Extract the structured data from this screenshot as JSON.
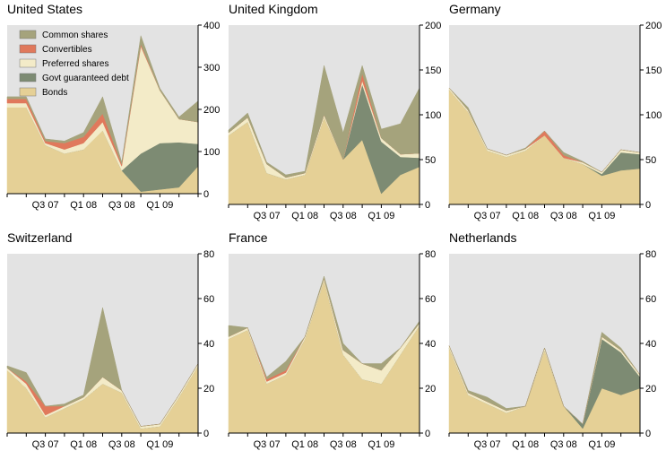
{
  "chart_data": [
    {
      "type": "area",
      "title": "United States",
      "stacked": true,
      "ylim": [
        0,
        400
      ],
      "y_ticks": [
        "0",
        "100",
        "200",
        "300",
        "400"
      ],
      "x_ticks": [
        "Q3 07",
        "Q1 08",
        "Q3 08",
        "Q1 09"
      ],
      "legend": [
        "Common shares",
        "Convertibles",
        "Preferred shares",
        "Govt guaranteed debt",
        "Bonds"
      ],
      "legend_position": "top-left",
      "x": [
        "Q1 07",
        "Q2 07",
        "Q3 07",
        "Q4 07",
        "Q1 08",
        "Q2 08",
        "Q3 08",
        "Q4 08",
        "Q1 09",
        "Q2 09",
        "Q3 09"
      ],
      "series": [
        {
          "name": "Bonds",
          "values": [
            205,
            205,
            115,
            95,
            105,
            150,
            55,
            5,
            10,
            15,
            65
          ]
        },
        {
          "name": "Govt guaranteed debt",
          "values": [
            0,
            0,
            0,
            0,
            0,
            0,
            0,
            90,
            110,
            107,
            53
          ]
        },
        {
          "name": "Preferred shares",
          "values": [
            10,
            10,
            5,
            10,
            15,
            20,
            10,
            255,
            125,
            55,
            52
          ]
        },
        {
          "name": "Convertibles",
          "values": [
            10,
            10,
            5,
            15,
            15,
            20,
            5,
            5,
            0,
            0,
            0
          ]
        },
        {
          "name": "Common shares",
          "values": [
            5,
            5,
            5,
            5,
            10,
            40,
            5,
            20,
            5,
            5,
            50
          ]
        }
      ]
    },
    {
      "type": "area",
      "title": "United Kingdom",
      "stacked": true,
      "ylim": [
        0,
        200
      ],
      "y_ticks": [
        "0",
        "50",
        "100",
        "150",
        "200"
      ],
      "x_ticks": [
        "Q3 07",
        "Q1 08",
        "Q3 08",
        "Q1 09"
      ],
      "x": [
        "Q1 07",
        "Q2 07",
        "Q3 07",
        "Q4 07",
        "Q1 08",
        "Q2 08",
        "Q3 08",
        "Q4 08",
        "Q1 09",
        "Q2 09",
        "Q3 09"
      ],
      "series": [
        {
          "name": "Bonds",
          "values": [
            77,
            92,
            35,
            28,
            33,
            97,
            50,
            72,
            12,
            33,
            42
          ]
        },
        {
          "name": "Govt guaranteed debt",
          "values": [
            0,
            0,
            0,
            0,
            0,
            0,
            0,
            62,
            58,
            20,
            10
          ]
        },
        {
          "name": "Preferred shares",
          "values": [
            3,
            5,
            10,
            2,
            2,
            3,
            0,
            4,
            4,
            3,
            5
          ]
        },
        {
          "name": "Convertibles",
          "values": [
            0,
            0,
            0,
            0,
            0,
            0,
            0,
            8,
            0,
            0,
            0
          ]
        },
        {
          "name": "Common shares",
          "values": [
            3,
            5,
            2,
            3,
            2,
            55,
            30,
            9,
            10,
            34,
            73
          ]
        }
      ]
    },
    {
      "type": "area",
      "title": "Germany",
      "stacked": true,
      "ylim": [
        0,
        200
      ],
      "y_ticks": [
        "0",
        "50",
        "100",
        "150",
        "200"
      ],
      "x_ticks": [
        "Q3 07",
        "Q1 08",
        "Q3 08",
        "Q1 09"
      ],
      "x": [
        "Q1 07",
        "Q2 07",
        "Q3 07",
        "Q4 07",
        "Q1 08",
        "Q2 08",
        "Q3 08",
        "Q4 08",
        "Q1 09",
        "Q2 09",
        "Q3 09"
      ],
      "series": [
        {
          "name": "Bonds",
          "values": [
            128,
            103,
            60,
            53,
            60,
            77,
            52,
            45,
            32,
            38,
            40
          ]
        },
        {
          "name": "Govt guaranteed debt",
          "values": [
            0,
            0,
            0,
            0,
            0,
            0,
            0,
            0,
            2,
            20,
            16
          ]
        },
        {
          "name": "Preferred shares",
          "values": [
            2,
            2,
            2,
            2,
            2,
            0,
            0,
            2,
            2,
            3,
            2
          ]
        },
        {
          "name": "Convertibles",
          "values": [
            0,
            0,
            0,
            0,
            0,
            5,
            3,
            0,
            0,
            0,
            0
          ]
        },
        {
          "name": "Common shares",
          "values": [
            0,
            3,
            0,
            0,
            1,
            0,
            3,
            1,
            0,
            0,
            0
          ]
        }
      ]
    },
    {
      "type": "area",
      "title": "Switzerland",
      "stacked": true,
      "ylim": [
        0,
        80
      ],
      "y_ticks": [
        "0",
        "20",
        "40",
        "60",
        "80"
      ],
      "x_ticks": [
        "Q3 07",
        "Q1 08",
        "Q3 08",
        "Q1 09"
      ],
      "x": [
        "Q1 07",
        "Q2 07",
        "Q3 07",
        "Q4 07",
        "Q1 08",
        "Q2 08",
        "Q3 08",
        "Q4 08",
        "Q1 09",
        "Q2 09",
        "Q3 09"
      ],
      "series": [
        {
          "name": "Bonds",
          "values": [
            28,
            20,
            7,
            11,
            15,
            22,
            18,
            2,
            3,
            16,
            30
          ]
        },
        {
          "name": "Govt guaranteed debt",
          "values": [
            0,
            0,
            0,
            0,
            0,
            0,
            0,
            0,
            0,
            0,
            0
          ]
        },
        {
          "name": "Preferred shares",
          "values": [
            1,
            2,
            1,
            1,
            1,
            3,
            1,
            1,
            1,
            1,
            1
          ]
        },
        {
          "name": "Convertibles",
          "values": [
            0,
            1,
            4,
            0,
            0,
            0,
            0,
            0,
            0,
            0,
            0
          ]
        },
        {
          "name": "Common shares",
          "values": [
            1,
            4,
            0,
            1,
            1,
            31,
            0,
            0,
            0,
            0,
            0
          ]
        }
      ]
    },
    {
      "type": "area",
      "title": "France",
      "stacked": true,
      "ylim": [
        0,
        80
      ],
      "y_ticks": [
        "0",
        "20",
        "40",
        "60",
        "80"
      ],
      "x_ticks": [
        "Q3 07",
        "Q1 08",
        "Q3 08",
        "Q1 09"
      ],
      "x": [
        "Q1 07",
        "Q2 07",
        "Q3 07",
        "Q4 07",
        "Q1 08",
        "Q2 08",
        "Q3 08",
        "Q4 08",
        "Q1 09",
        "Q2 09",
        "Q3 09"
      ],
      "series": [
        {
          "name": "Bonds",
          "values": [
            42,
            46,
            22,
            26,
            42,
            68,
            35,
            24,
            22,
            35,
            48
          ]
        },
        {
          "name": "Govt guaranteed debt",
          "values": [
            0,
            0,
            0,
            0,
            0,
            0,
            0,
            0,
            0,
            0,
            0
          ]
        },
        {
          "name": "Preferred shares",
          "values": [
            1,
            1,
            1,
            1,
            1,
            1,
            2,
            7,
            6,
            3,
            1
          ]
        },
        {
          "name": "Convertibles",
          "values": [
            0,
            0,
            1,
            1,
            0,
            0,
            0,
            0,
            0,
            0,
            0
          ]
        },
        {
          "name": "Common shares",
          "values": [
            5,
            0,
            1,
            4,
            0,
            1,
            3,
            0,
            3,
            0,
            1
          ]
        }
      ]
    },
    {
      "type": "area",
      "title": "Netherlands",
      "stacked": true,
      "ylim": [
        0,
        80
      ],
      "y_ticks": [
        "0",
        "20",
        "40",
        "60",
        "80"
      ],
      "x_ticks": [
        "Q3 07",
        "Q1 08",
        "Q3 08",
        "Q1 09"
      ],
      "x": [
        "Q1 07",
        "Q2 07",
        "Q3 07",
        "Q4 07",
        "Q1 08",
        "Q2 08",
        "Q3 08",
        "Q4 08",
        "Q1 09",
        "Q2 09",
        "Q3 09"
      ],
      "series": [
        {
          "name": "Bonds",
          "values": [
            38,
            17,
            13,
            9,
            12,
            37,
            12,
            2,
            20,
            17,
            20
          ]
        },
        {
          "name": "Govt guaranteed debt",
          "values": [
            0,
            0,
            0,
            0,
            0,
            0,
            0,
            2,
            22,
            19,
            5
          ]
        },
        {
          "name": "Preferred shares",
          "values": [
            1,
            1,
            1,
            1,
            0,
            1,
            0,
            0,
            1,
            1,
            1
          ]
        },
        {
          "name": "Convertibles",
          "values": [
            0,
            0,
            0,
            0,
            0,
            0,
            0,
            0,
            0,
            0,
            0
          ]
        },
        {
          "name": "Common shares",
          "values": [
            0,
            1,
            2,
            1,
            0,
            0,
            0,
            0,
            2,
            1,
            0
          ]
        }
      ]
    }
  ],
  "colors": {
    "Bonds": "#e5d096",
    "Govt guaranteed debt": "#7d8b73",
    "Preferred shares": "#f3ebc8",
    "Convertibles": "#e0795c",
    "Common shares": "#a5a37c",
    "plot_bg": "#e3e3e3"
  }
}
